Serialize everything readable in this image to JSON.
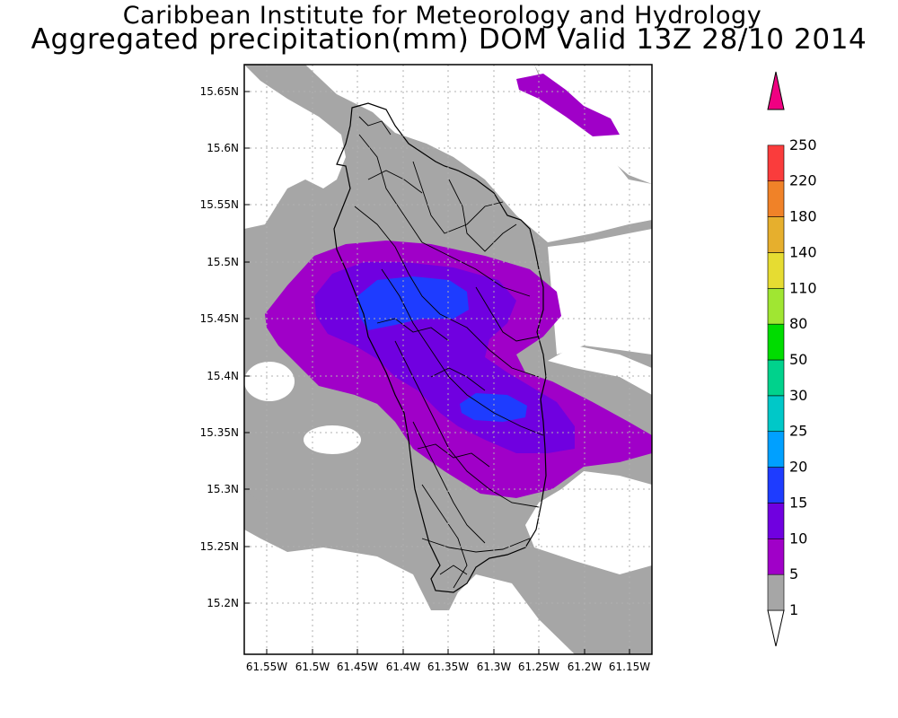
{
  "title": {
    "line1": "Caribbean Institute for Meteorology and Hydrology",
    "line2": "Aggregated precipitation(mm) DOM Valid 13Z 28/10 2014"
  },
  "axes": {
    "lat_ticks": [
      "15.65N",
      "15.6N",
      "15.55N",
      "15.5N",
      "15.45N",
      "15.4N",
      "15.35N",
      "15.3N",
      "15.25N",
      "15.2N"
    ],
    "lon_ticks": [
      "61.55W",
      "61.5W",
      "61.45W",
      "61.4W",
      "61.35W",
      "61.3W",
      "61.25W",
      "61.2W",
      "61.15W"
    ]
  },
  "colorbar": {
    "labels": [
      "1",
      "5",
      "10",
      "15",
      "20",
      "25",
      "30",
      "50",
      "80",
      "110",
      "140",
      "180",
      "220",
      "250"
    ],
    "colors": [
      "#ffffff",
      "#a6a6a6",
      "#a000c8",
      "#7000e0",
      "#1e3cff",
      "#00a0ff",
      "#00c8c8",
      "#00d28c",
      "#00dc00",
      "#a0e632",
      "#e6dc32",
      "#e6af2d",
      "#f08228",
      "#fa3c3c",
      "#f00082"
    ]
  },
  "legend_colors": {
    "gray": "#a6a6a6",
    "purple_light": "#a000c8",
    "purple_dark": "#7000e0",
    "blue": "#1e3cff"
  }
}
